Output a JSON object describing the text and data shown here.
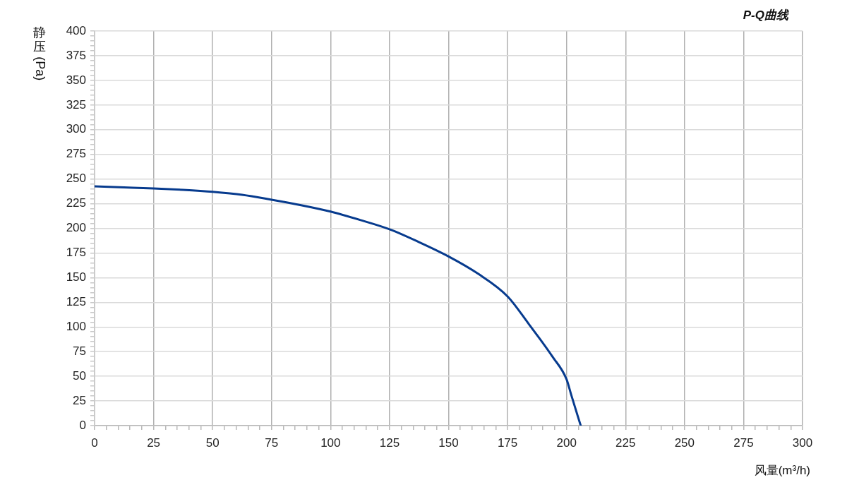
{
  "chart_data": {
    "type": "line",
    "title": "P-Q曲线",
    "xlabel": "风量(m³/h)",
    "ylabel": "静压(Pa)",
    "x": [
      0,
      12.5,
      25,
      37.5,
      50,
      62.5,
      75,
      87.5,
      100,
      112.5,
      125,
      137.5,
      150,
      162.5,
      175,
      184,
      194,
      200,
      202,
      206
    ],
    "series": [
      {
        "color": "#073b8e",
        "values": [
          242.5,
          241.5,
          240.5,
          239,
          237,
          234,
          229,
          223.5,
          217,
          208.5,
          199,
          186,
          171.5,
          154,
          131,
          103,
          70,
          47,
          31,
          0
        ]
      }
    ],
    "xlim": [
      0,
      300
    ],
    "ylim": [
      0,
      400
    ],
    "xticks": [
      0,
      {
        "value": 5,
        "label": null
      },
      {
        "value": 10,
        "label": null
      },
      {
        "value": 15,
        "label": null
      },
      {
        "value": 20,
        "label": null
      },
      25,
      {
        "value": 30,
        "label": null
      },
      {
        "value": 35,
        "label": null
      },
      {
        "value": 40,
        "label": null
      },
      {
        "value": 45,
        "label": null
      },
      50,
      {
        "value": 55,
        "label": null
      },
      {
        "value": 60,
        "label": null
      },
      {
        "value": 65,
        "label": null
      },
      {
        "value": 70,
        "label": null
      },
      75,
      {
        "value": 80,
        "label": null
      },
      {
        "value": 85,
        "label": null
      },
      {
        "value": 90,
        "label": null
      },
      {
        "value": 95,
        "label": null
      },
      100,
      {
        "value": 105,
        "label": null
      },
      {
        "value": 110,
        "label": null
      },
      {
        "value": 115,
        "label": null
      },
      {
        "value": 120,
        "label": null
      },
      125,
      {
        "value": 130,
        "label": null
      },
      {
        "value": 135,
        "label": null
      },
      {
        "value": 140,
        "label": null
      },
      {
        "value": 145,
        "label": null
      },
      150,
      {
        "value": 155,
        "label": null
      },
      {
        "value": 160,
        "label": null
      },
      {
        "value": 165,
        "label": null
      },
      {
        "value": 170,
        "label": null
      },
      175,
      {
        "value": 180,
        "label": null
      },
      {
        "value": 185,
        "label": null
      },
      {
        "value": 190,
        "label": null
      },
      {
        "value": 195,
        "label": null
      },
      200,
      {
        "value": 205,
        "label": null
      },
      {
        "value": 210,
        "label": null
      },
      {
        "value": 215,
        "label": null
      },
      {
        "value": 220,
        "label": null
      },
      225,
      {
        "value": 230,
        "label": null
      },
      {
        "value": 235,
        "label": null
      },
      {
        "value": 240,
        "label": null
      },
      {
        "value": 245,
        "label": null
      },
      250,
      {
        "value": 255,
        "label": null
      },
      {
        "value": 260,
        "label": null
      },
      {
        "value": 265,
        "label": null
      },
      {
        "value": 270,
        "label": null
      },
      275,
      {
        "value": 280,
        "label": null
      },
      {
        "value": 285,
        "label": null
      },
      {
        "value": 290,
        "label": null
      },
      {
        "value": 295,
        "label": null
      },
      300
    ],
    "yticks": [
      0,
      {
        "value": 5,
        "label": null
      },
      {
        "value": 10,
        "label": null
      },
      {
        "value": 15,
        "label": null
      },
      {
        "value": 20,
        "label": null
      },
      25,
      {
        "value": 30,
        "label": null
      },
      {
        "value": 35,
        "label": null
      },
      {
        "value": 40,
        "label": null
      },
      {
        "value": 45,
        "label": null
      },
      50,
      {
        "value": 55,
        "label": null
      },
      {
        "value": 60,
        "label": null
      },
      {
        "value": 65,
        "label": null
      },
      {
        "value": 70,
        "label": null
      },
      75,
      {
        "value": 80,
        "label": null
      },
      {
        "value": 85,
        "label": null
      },
      {
        "value": 90,
        "label": null
      },
      {
        "value": 95,
        "label": null
      },
      100,
      {
        "value": 105,
        "label": null
      },
      {
        "value": 110,
        "label": null
      },
      {
        "value": 115,
        "label": null
      },
      {
        "value": 120,
        "label": null
      },
      125,
      {
        "value": 130,
        "label": null
      },
      {
        "value": 135,
        "label": null
      },
      {
        "value": 140,
        "label": null
      },
      {
        "value": 145,
        "label": null
      },
      150,
      {
        "value": 155,
        "label": null
      },
      {
        "value": 160,
        "label": null
      },
      {
        "value": 165,
        "label": null
      },
      {
        "value": 170,
        "label": null
      },
      175,
      {
        "value": 180,
        "label": null
      },
      {
        "value": 185,
        "label": null
      },
      {
        "value": 190,
        "label": null
      },
      {
        "value": 195,
        "label": null
      },
      200,
      {
        "value": 205,
        "label": null
      },
      {
        "value": 210,
        "label": null
      },
      {
        "value": 215,
        "label": null
      },
      {
        "value": 220,
        "label": null
      },
      225,
      {
        "value": 230,
        "label": null
      },
      {
        "value": 235,
        "label": null
      },
      {
        "value": 240,
        "label": null
      },
      {
        "value": 245,
        "label": null
      },
      250,
      {
        "value": 255,
        "label": null
      },
      {
        "value": 260,
        "label": null
      },
      {
        "value": 265,
        "label": null
      },
      {
        "value": 270,
        "label": null
      },
      275,
      {
        "value": 280,
        "label": null
      },
      {
        "value": 285,
        "label": null
      },
      {
        "value": 290,
        "label": null
      },
      {
        "value": 295,
        "label": null
      },
      300,
      {
        "value": 305,
        "label": null
      },
      {
        "value": 310,
        "label": null
      },
      {
        "value": 315,
        "label": null
      },
      {
        "value": 320,
        "label": null
      },
      325,
      {
        "value": 330,
        "label": null
      },
      {
        "value": 335,
        "label": null
      },
      {
        "value": 340,
        "label": null
      },
      {
        "value": 345,
        "label": null
      },
      350,
      {
        "value": 355,
        "label": null
      },
      {
        "value": 360,
        "label": null
      },
      {
        "value": 365,
        "label": null
      },
      {
        "value": 370,
        "label": null
      },
      375,
      {
        "value": 380,
        "label": null
      },
      {
        "value": 385,
        "label": null
      },
      {
        "value": 390,
        "label": null
      },
      {
        "value": 395,
        "label": null
      },
      400
    ],
    "grid": true,
    "marker": "none",
    "line_style": "solid"
  }
}
